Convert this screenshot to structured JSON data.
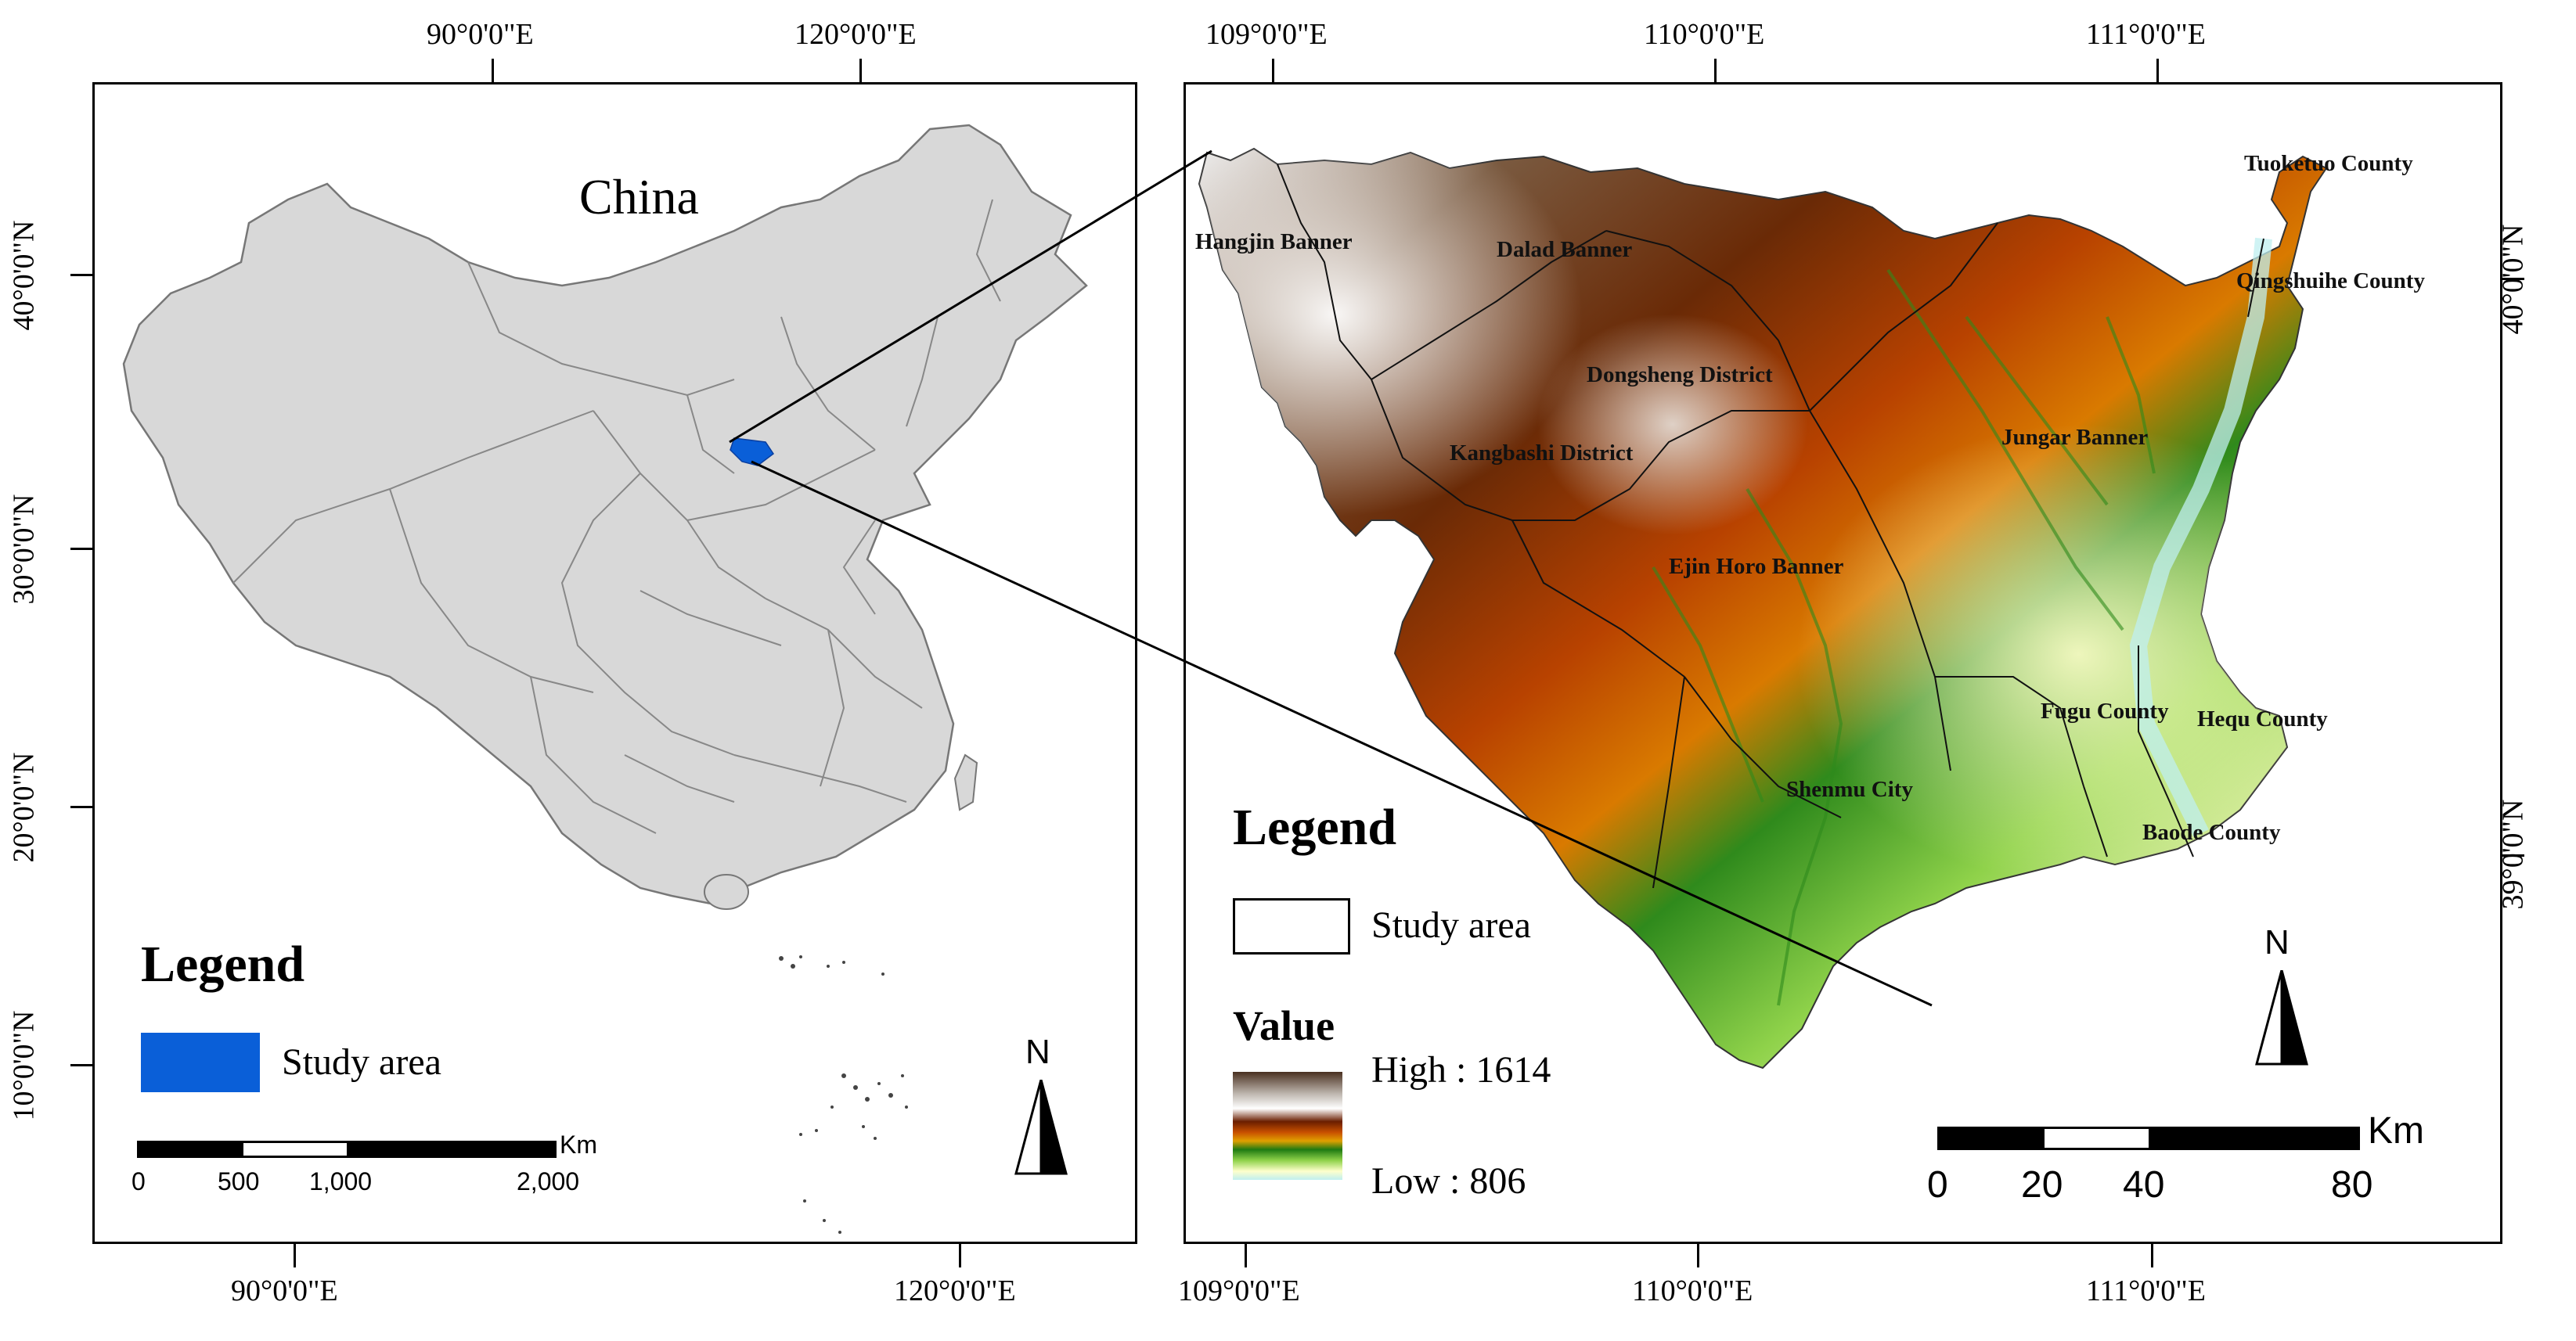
{
  "left_map": {
    "title": "China",
    "top_coords": [
      "90°0'0\"E",
      "120°0'0\"E"
    ],
    "bottom_coords": [
      "90°0'0\"E",
      "120°0'0\"E"
    ],
    "left_coords": [
      "40°0'0\"N",
      "30°0'0\"N",
      "20°0'0\"N",
      "10°0'0\"N"
    ],
    "legend": {
      "heading": "Legend",
      "item_label": "Study area",
      "item_color": "#0a5fd8"
    },
    "north_label": "N",
    "scale": {
      "unit": "Km",
      "labels": [
        "0",
        "500",
        "1,000",
        "2,000"
      ]
    }
  },
  "right_map": {
    "top_coords": [
      "109°0'0\"E",
      "110°0'0\"E",
      "111°0'0\"E"
    ],
    "bottom_coords": [
      "109°0'0\"E",
      "110°0'0\"E",
      "111°0'0\"E"
    ],
    "right_coords": [
      "40°0'0\"N",
      "39°0'0\"N"
    ],
    "places": [
      "Tuoketuo County",
      "Hangjin Banner",
      "Dalad Banner",
      "Qingshuihe County",
      "Dongsheng District",
      "Jungar Banner",
      "Kangbashi District",
      "Ejin Horo Banner",
      "Fugu County",
      "Hequ County",
      "Shenmu City",
      "Baode County"
    ],
    "legend": {
      "heading": "Legend",
      "item_label": "Study area",
      "value_heading": "Value",
      "high_label": "High : 1614",
      "low_label": "Low : 806",
      "ramp_colors": [
        "#5a3b1e",
        "#ffffff",
        "#8b2e00",
        "#d45f00",
        "#e5b300",
        "#1f7a12",
        "#7fcf3a",
        "#ffffcc",
        "#bfeff0"
      ]
    },
    "north_label": "N",
    "scale": {
      "unit": "Km",
      "labels": [
        "0",
        "20",
        "40",
        "80"
      ]
    }
  }
}
